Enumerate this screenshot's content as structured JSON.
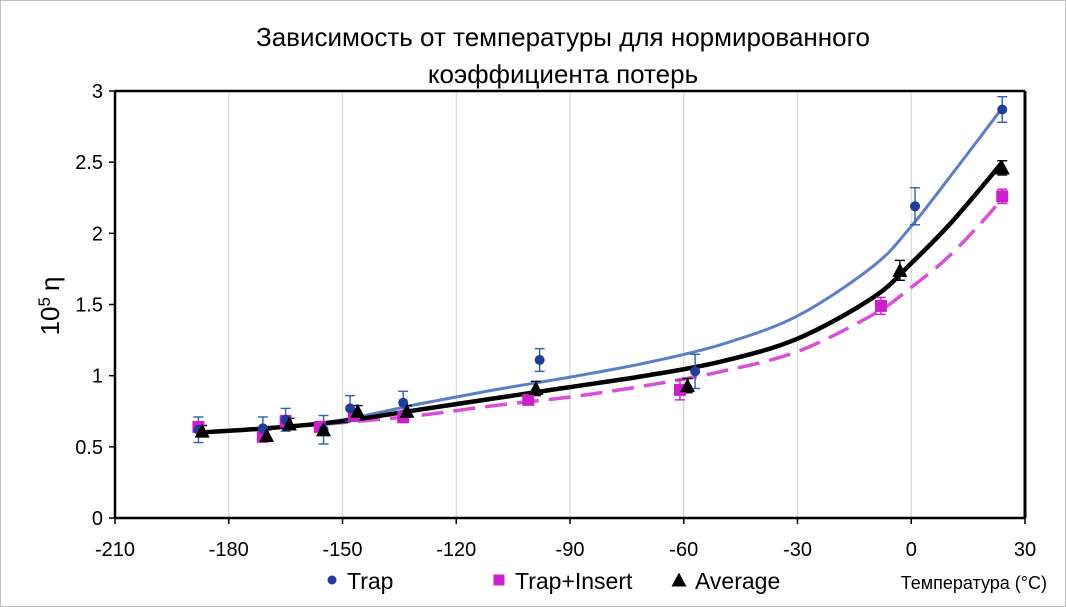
{
  "chart_data": {
    "type": "scatter",
    "title_lines": [
      "Зависимость от температуры для нормированного",
      "коэффициента потерь"
    ],
    "xlabel": "Температура (°C)",
    "ylabel_base": "10",
    "ylabel_exp": "5",
    "ylabel_sym": "η",
    "xlim": [
      -210,
      30
    ],
    "ylim": [
      0,
      3
    ],
    "xticks": [
      -210,
      -180,
      -150,
      -120,
      -90,
      -60,
      -30,
      0,
      30
    ],
    "yticks": [
      0,
      0.5,
      1,
      1.5,
      2,
      2.5,
      3
    ],
    "xtick_labels": [
      "-210",
      "-180",
      "-150",
      "-120",
      "-90",
      "-60",
      "-30",
      "0",
      "30"
    ],
    "ytick_labels": [
      "0",
      "0.5",
      "1",
      "1.5",
      "2",
      "2.5",
      "3"
    ],
    "grid": "vertical",
    "legend_position": "bottom",
    "series": [
      {
        "name": "Trap",
        "marker": "circle",
        "color": "#1f3d99",
        "trend_color": "#5b7fc6",
        "trend_style": "solid",
        "x": [
          -188,
          -171,
          -165,
          -155,
          -148,
          -134,
          -98,
          -57,
          1,
          24
        ],
        "y": [
          0.62,
          0.63,
          0.69,
          0.62,
          0.77,
          0.81,
          1.11,
          1.03,
          2.19,
          2.87
        ],
        "err": [
          0.09,
          0.08,
          0.08,
          0.1,
          0.09,
          0.08,
          0.08,
          0.12,
          0.13,
          0.09
        ],
        "trend": [
          [
            -188,
            0.6
          ],
          [
            -170,
            0.63
          ],
          [
            -150,
            0.69
          ],
          [
            -130,
            0.8
          ],
          [
            -110,
            0.9
          ],
          [
            -90,
            0.99
          ],
          [
            -70,
            1.09
          ],
          [
            -50,
            1.22
          ],
          [
            -30,
            1.42
          ],
          [
            -10,
            1.77
          ],
          [
            0,
            2.05
          ],
          [
            10,
            2.39
          ],
          [
            20,
            2.74
          ],
          [
            24,
            2.88
          ]
        ]
      },
      {
        "name": "Trap+Insert",
        "marker": "square",
        "color": "#cc1fcc",
        "trend_color": "#d94fd9",
        "trend_style": "dashed",
        "x": [
          -188,
          -171,
          -165,
          -156,
          -147,
          -134,
          -101,
          -61,
          -8,
          24
        ],
        "y": [
          0.64,
          0.57,
          0.68,
          0.64,
          0.72,
          0.71,
          0.83,
          0.9,
          1.49,
          2.26
        ],
        "err": [
          0.03,
          0.03,
          0.04,
          0.03,
          0.04,
          0.04,
          0.03,
          0.07,
          0.06,
          0.05
        ],
        "trend": [
          [
            -188,
            0.6
          ],
          [
            -170,
            0.63
          ],
          [
            -150,
            0.67
          ],
          [
            -130,
            0.72
          ],
          [
            -110,
            0.79
          ],
          [
            -90,
            0.85
          ],
          [
            -70,
            0.93
          ],
          [
            -50,
            1.03
          ],
          [
            -30,
            1.17
          ],
          [
            -10,
            1.43
          ],
          [
            0,
            1.62
          ],
          [
            10,
            1.84
          ],
          [
            20,
            2.12
          ],
          [
            24,
            2.25
          ]
        ]
      },
      {
        "name": "Average",
        "marker": "triangle",
        "color": "#000000",
        "trend_color": "#000000",
        "trend_style": "solid",
        "x": [
          -187,
          -170,
          -164,
          -155,
          -146,
          -133,
          -99,
          -59,
          -3,
          24
        ],
        "y": [
          0.61,
          0.58,
          0.66,
          0.62,
          0.75,
          0.75,
          0.91,
          0.93,
          1.74,
          2.46
        ],
        "err": [
          0.04,
          0.04,
          0.04,
          0.04,
          0.04,
          0.04,
          0.05,
          0.05,
          0.07,
          0.05
        ],
        "trend": [
          [
            -188,
            0.6
          ],
          [
            -170,
            0.63
          ],
          [
            -150,
            0.68
          ],
          [
            -130,
            0.76
          ],
          [
            -110,
            0.84
          ],
          [
            -90,
            0.92
          ],
          [
            -70,
            1.0
          ],
          [
            -50,
            1.1
          ],
          [
            -30,
            1.26
          ],
          [
            -10,
            1.55
          ],
          [
            0,
            1.79
          ],
          [
            10,
            2.06
          ],
          [
            20,
            2.37
          ],
          [
            24,
            2.5
          ]
        ]
      }
    ]
  }
}
